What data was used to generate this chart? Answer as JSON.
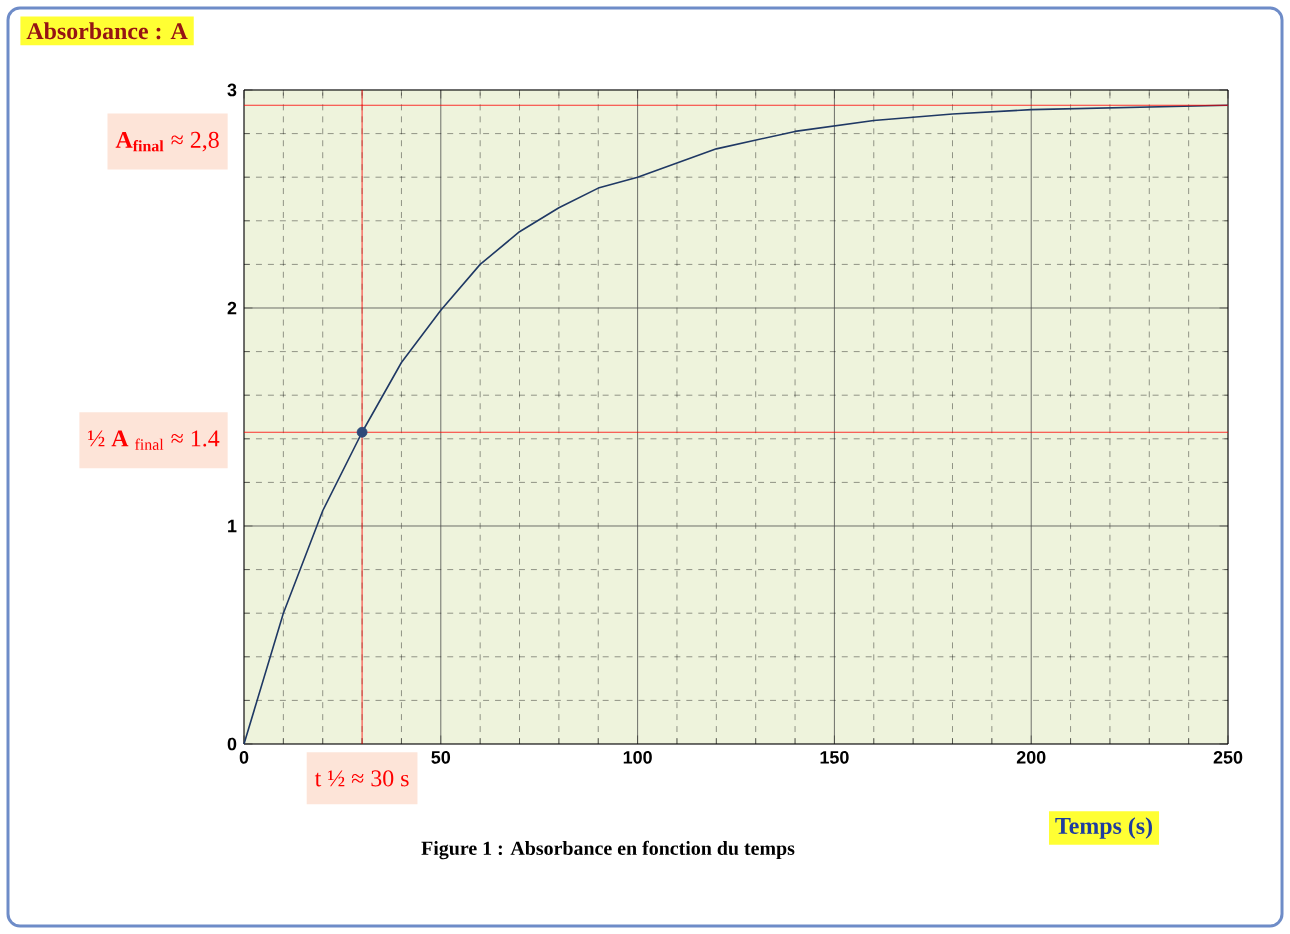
{
  "chart_data": {
    "type": "line",
    "ylabel": "Absorbance : A",
    "xlabel": "Temps (s)",
    "title": "Figure 1 : Absorbance en fonction du temps",
    "xlim": [
      0,
      250
    ],
    "ylim": [
      0,
      3
    ],
    "xticks": [
      0,
      50,
      100,
      150,
      200,
      250
    ],
    "yticks": [
      0,
      1,
      2,
      3
    ],
    "grid": true,
    "series": [
      {
        "color": "#1f3864",
        "x": [
          0,
          10,
          20,
          30,
          40,
          50,
          60,
          70,
          80,
          90,
          100,
          120,
          140,
          160,
          180,
          200,
          225,
          250
        ],
        "values": [
          0,
          0.6,
          1.07,
          1.43,
          1.75,
          1.99,
          2.2,
          2.35,
          2.46,
          2.55,
          2.6,
          2.73,
          2.81,
          2.86,
          2.89,
          2.91,
          2.92,
          2.93
        ]
      },
      {
        "type": "scatter",
        "marker": "circle",
        "color": "#2e4a7a",
        "x": [
          30
        ],
        "values": [
          1.43
        ]
      }
    ],
    "ref_lines": [
      {
        "axis": "y",
        "value": 2.93,
        "label": "**A$_{final}$** ≈ 2,8",
        "color": "#ff0000"
      },
      {
        "axis": "y",
        "value": 1.43,
        "label": "½ **A** $_{final}$ ≈ 1.4",
        "color": "#ff0000"
      },
      {
        "axis": "x",
        "value": 30,
        "label": "t ½ ≈ 30 s",
        "color": "#ff0000"
      }
    ]
  }
}
